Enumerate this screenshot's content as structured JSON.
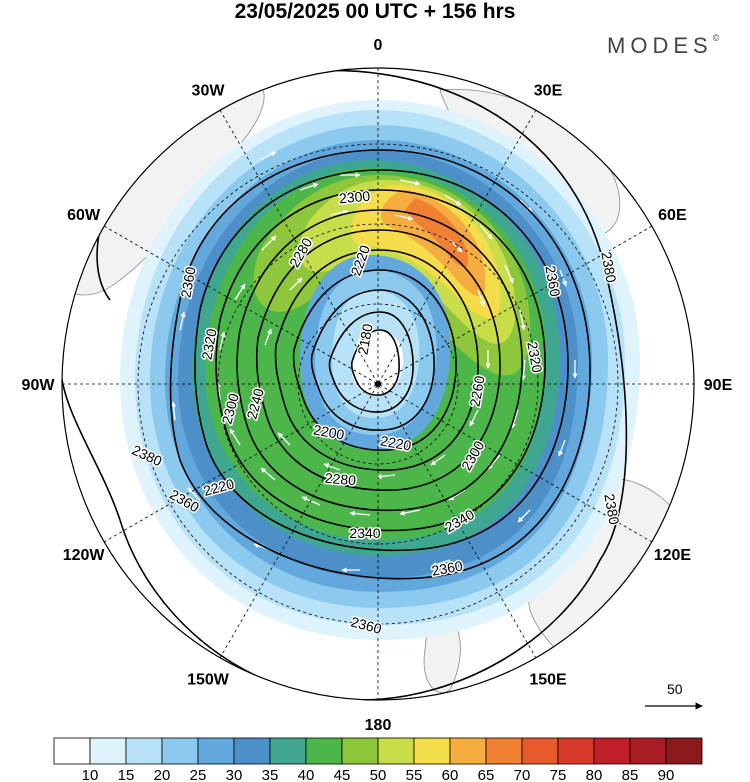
{
  "title": "23/05/2025  00 UTC  + 156 hrs",
  "brand": "MODES",
  "brand_mark": "©",
  "longitude_labels": [
    {
      "text": "0",
      "deg": 0
    },
    {
      "text": "30E",
      "deg": 30
    },
    {
      "text": "60E",
      "deg": 60
    },
    {
      "text": "90E",
      "deg": 90
    },
    {
      "text": "120E",
      "deg": 120
    },
    {
      "text": "150E",
      "deg": 150
    },
    {
      "text": "180",
      "deg": 180
    },
    {
      "text": "150W",
      "deg": 210
    },
    {
      "text": "120W",
      "deg": 240
    },
    {
      "text": "90W",
      "deg": 270
    },
    {
      "text": "60W",
      "deg": 300
    },
    {
      "text": "30W",
      "deg": 330
    }
  ],
  "contour_labels": [
    "2180",
    "2220",
    "2220",
    "2200",
    "2220",
    "2240",
    "2260",
    "2280",
    "2280",
    "2300",
    "2300",
    "2300",
    "2320",
    "2320",
    "2340",
    "2340",
    "2360",
    "2360",
    "2360",
    "2360",
    "2360",
    "2380",
    "2380",
    "2380"
  ],
  "contour_levels": [
    2180,
    2220,
    2260,
    2300,
    2340,
    2380
  ],
  "vector_reference": "50",
  "colorbar": {
    "ticks": [
      "10",
      "15",
      "20",
      "25",
      "30",
      "35",
      "40",
      "45",
      "50",
      "55",
      "60",
      "65",
      "70",
      "75",
      "80",
      "85",
      "90"
    ],
    "colors": [
      "#ffffff",
      "#dff3fd",
      "#b8e2f7",
      "#8cc9ee",
      "#63a8dd",
      "#4d8fc8",
      "#3fa690",
      "#4cb64a",
      "#8ec73b",
      "#c9dd4a",
      "#f5dc4a",
      "#f5ad42",
      "#f08032",
      "#e65a2c",
      "#d93a2a",
      "#c01f27",
      "#a81c24",
      "#8c1a1d"
    ]
  },
  "chart_data": {
    "type": "heatmap",
    "projection": "polar stereographic, southern hemisphere",
    "field_shaded": "wind speed",
    "field_contoured": "geopotential height",
    "contour_values": [
      2180,
      2200,
      2220,
      2240,
      2260,
      2280,
      2300,
      2320,
      2340,
      2360,
      2380
    ],
    "colorbar_range": [
      10,
      90
    ],
    "jet_max_sector": "0-60E",
    "jet_max_approx": 65
  }
}
